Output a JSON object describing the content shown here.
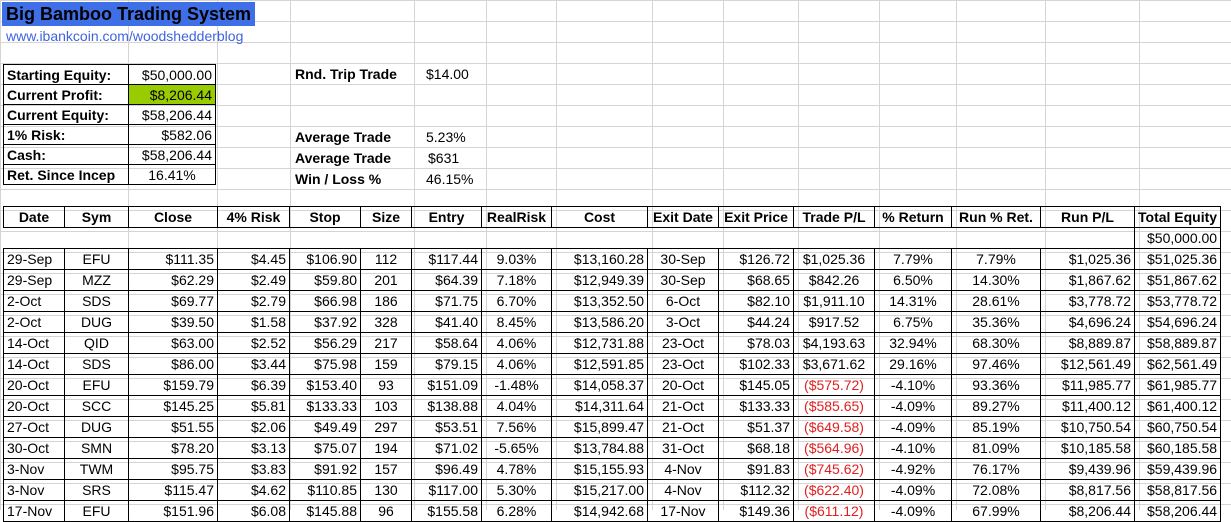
{
  "title": "Big Bamboo Trading System",
  "link": "www.ibankcoin.com/woodshedderblog",
  "summary": [
    {
      "label": "Starting Equity:",
      "value": "$50,000.00"
    },
    {
      "label": "Current Profit:",
      "value": "$8,206.44",
      "highlight": "#99cc00"
    },
    {
      "label": "Current Equity:",
      "value": "$58,206.44"
    },
    {
      "label": "1% Risk:",
      "value": "$582.06"
    },
    {
      "label": "Cash:",
      "value": "$58,206.44"
    },
    {
      "label": "Ret. Since Incep",
      "value": "16.41%"
    }
  ],
  "stats": {
    "round_trip_label": "Rnd. Trip Trade",
    "round_trip_value": "$14.00",
    "avg_trade_pct_label": "Average Trade",
    "avg_trade_pct_value": "5.23%",
    "avg_trade_amt_label": "Average Trade",
    "avg_trade_amt_value": "$631",
    "win_loss_label": "Win / Loss %",
    "win_loss_value": "46.15%"
  },
  "columns": [
    "Date",
    "Sym",
    "Close",
    "4% Risk",
    "Stop",
    "Size",
    "Entry",
    "RealRisk",
    "Cost",
    "Exit Date",
    "Exit Price",
    "Trade P/L",
    "% Return",
    "Run % Ret.",
    "Run P/L",
    "Total Equity"
  ],
  "initial_equity": "$50,000.00",
  "rows": [
    [
      "29-Sep",
      "EFU",
      "$111.35",
      "$4.45",
      "$106.90",
      "112",
      "$117.44",
      "9.03%",
      "$13,160.28",
      "30-Sep",
      "$126.72",
      "$1,025.36",
      "7.79%",
      "7.79%",
      "$1,025.36",
      "$51,025.36"
    ],
    [
      "29-Sep",
      "MZZ",
      "$62.29",
      "$2.49",
      "$59.80",
      "201",
      "$64.39",
      "7.18%",
      "$12,949.39",
      "30-Sep",
      "$68.65",
      "$842.26",
      "6.50%",
      "14.30%",
      "$1,867.62",
      "$51,867.62"
    ],
    [
      "2-Oct",
      "SDS",
      "$69.77",
      "$2.79",
      "$66.98",
      "186",
      "$71.75",
      "6.70%",
      "$13,352.50",
      "6-Oct",
      "$82.10",
      "$1,911.10",
      "14.31%",
      "28.61%",
      "$3,778.72",
      "$53,778.72"
    ],
    [
      "2-Oct",
      "DUG",
      "$39.50",
      "$1.58",
      "$37.92",
      "328",
      "$41.40",
      "8.45%",
      "$13,586.20",
      "3-Oct",
      "$44.24",
      "$917.52",
      "6.75%",
      "35.36%",
      "$4,696.24",
      "$54,696.24"
    ],
    [
      "14-Oct",
      "QID",
      "$63.00",
      "$2.52",
      "$56.29",
      "217",
      "$58.64",
      "4.06%",
      "$12,731.88",
      "23-Oct",
      "$78.03",
      "$4,193.63",
      "32.94%",
      "68.30%",
      "$8,889.87",
      "$58,889.87"
    ],
    [
      "14-Oct",
      "SDS",
      "$86.00",
      "$3.44",
      "$75.98",
      "159",
      "$79.15",
      "4.06%",
      "$12,591.85",
      "23-Oct",
      "$102.33",
      "$3,671.62",
      "29.16%",
      "97.46%",
      "$12,561.49",
      "$62,561.49"
    ],
    [
      "20-Oct",
      "EFU",
      "$159.79",
      "$6.39",
      "$153.40",
      "93",
      "$151.09",
      "-1.48%",
      "$14,058.37",
      "20-Oct",
      "$145.05",
      "($575.72)",
      "-4.10%",
      "93.36%",
      "$11,985.77",
      "$61,985.77"
    ],
    [
      "20-Oct",
      "SCC",
      "$145.25",
      "$5.81",
      "$133.33",
      "103",
      "$138.88",
      "4.04%",
      "$14,311.64",
      "21-Oct",
      "$133.33",
      "($585.65)",
      "-4.09%",
      "89.27%",
      "$11,400.12",
      "$61,400.12"
    ],
    [
      "27-Oct",
      "DUG",
      "$51.55",
      "$2.06",
      "$49.49",
      "297",
      "$53.51",
      "7.56%",
      "$15,899.47",
      "21-Oct",
      "$51.37",
      "($649.58)",
      "-4.09%",
      "85.19%",
      "$10,750.54",
      "$60,750.54"
    ],
    [
      "30-Oct",
      "SMN",
      "$78.20",
      "$3.13",
      "$75.07",
      "194",
      "$71.02",
      "-5.65%",
      "$13,784.88",
      "31-Oct",
      "$68.18",
      "($564.96)",
      "-4.10%",
      "81.09%",
      "$10,185.58",
      "$60,185.58"
    ],
    [
      "3-Nov",
      "TWM",
      "$95.75",
      "$3.83",
      "$91.92",
      "157",
      "$96.49",
      "4.78%",
      "$15,155.93",
      "4-Nov",
      "$91.83",
      "($745.62)",
      "-4.92%",
      "76.17%",
      "$9,439.96",
      "$59,439.96"
    ],
    [
      "3-Nov",
      "SRS",
      "$115.47",
      "$4.62",
      "$110.85",
      "130",
      "$117.00",
      "5.30%",
      "$15,217.00",
      "4-Nov",
      "$112.32",
      "($622.40)",
      "-4.09%",
      "72.08%",
      "$8,817.56",
      "$58,817.56"
    ],
    [
      "17-Nov",
      "EFU",
      "$151.96",
      "$6.08",
      "$145.88",
      "96",
      "$155.58",
      "6.28%",
      "$14,942.68",
      "17-Nov",
      "$149.36",
      "($611.12)",
      "-4.09%",
      "67.99%",
      "$8,206.44",
      "$58,206.44"
    ]
  ],
  "colors": {
    "title_bg": "#3f6fe6",
    "link": "#3f63e0",
    "profit_highlight": "#99cc00",
    "negative": "#e02020",
    "gridline": "#d4d4d4"
  }
}
